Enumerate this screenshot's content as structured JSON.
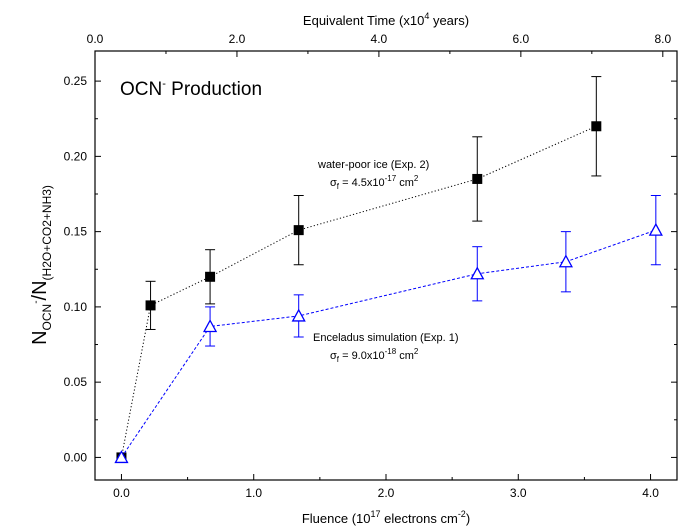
{
  "chart_data": {
    "type": "scatter",
    "title": "OCN",
    "title_superscript": "-",
    "title_suffix": " Production",
    "xlabel": {
      "base": "Fluence (10",
      "sup1": "17",
      "mid": " electrons cm",
      "sup2": "-2",
      "end": ")"
    },
    "x2label": {
      "base": "Equivalent Time (x10",
      "sup": "4",
      "end": " years)"
    },
    "ylabel": {
      "n1": "N",
      "sub1": "OCN",
      "sup1": "-",
      "slash": "/N",
      "sub2": "(H2O+CO2+NH3)"
    },
    "xlim": [
      -0.2,
      4.2
    ],
    "ylim": [
      -0.015,
      0.27
    ],
    "x2lim": [
      0.0,
      8.2
    ],
    "x_ticks": [
      0.0,
      1.0,
      2.0,
      3.0,
      4.0
    ],
    "x_tick_labels": [
      "0.0",
      "1.0",
      "2.0",
      "3.0",
      "4.0"
    ],
    "y_ticks": [
      0.0,
      0.05,
      0.1,
      0.15,
      0.2,
      0.25
    ],
    "y_tick_labels": [
      "0.00",
      "0.05",
      "0.10",
      "0.15",
      "0.20",
      "0.25"
    ],
    "x2_ticks": [
      0.0,
      2.0,
      4.0,
      6.0,
      8.0
    ],
    "x2_tick_labels": [
      "0.0",
      "2.0",
      "4.0",
      "6.0",
      "8.0"
    ],
    "grid": false,
    "series": [
      {
        "color": "#000000",
        "marker": "filled-square",
        "line": "dotted",
        "x": [
          0.0,
          0.22,
          0.67,
          1.34,
          2.69,
          3.59
        ],
        "y": [
          0.0,
          0.101,
          0.12,
          0.151,
          0.185,
          0.22
        ],
        "err": [
          0.0,
          0.016,
          0.018,
          0.023,
          0.028,
          0.033
        ]
      },
      {
        "color": "#0000ff",
        "marker": "open-triangle",
        "line": "dashed",
        "x": [
          0.0,
          0.67,
          1.34,
          2.69,
          3.36,
          4.04
        ],
        "y": [
          0.0,
          0.087,
          0.094,
          0.122,
          0.13,
          0.151
        ],
        "err": [
          0.0,
          0.013,
          0.014,
          0.018,
          0.02,
          0.023
        ]
      }
    ],
    "annotations": [
      {
        "line1": "water-poor  ice (Exp. 2)",
        "sigma": "σ",
        "sigma_sub": "f",
        "eq": " = 4.5x10",
        "exp": "-17",
        "unit": "  cm",
        "unit_sup": "2"
      },
      {
        "line1": "Enceladus simulation (Exp. 1)",
        "sigma": "σ",
        "sigma_sub": "f",
        "eq": " = 9.0x10",
        "exp": "-18",
        "unit": "  cm",
        "unit_sup": "2"
      }
    ]
  }
}
